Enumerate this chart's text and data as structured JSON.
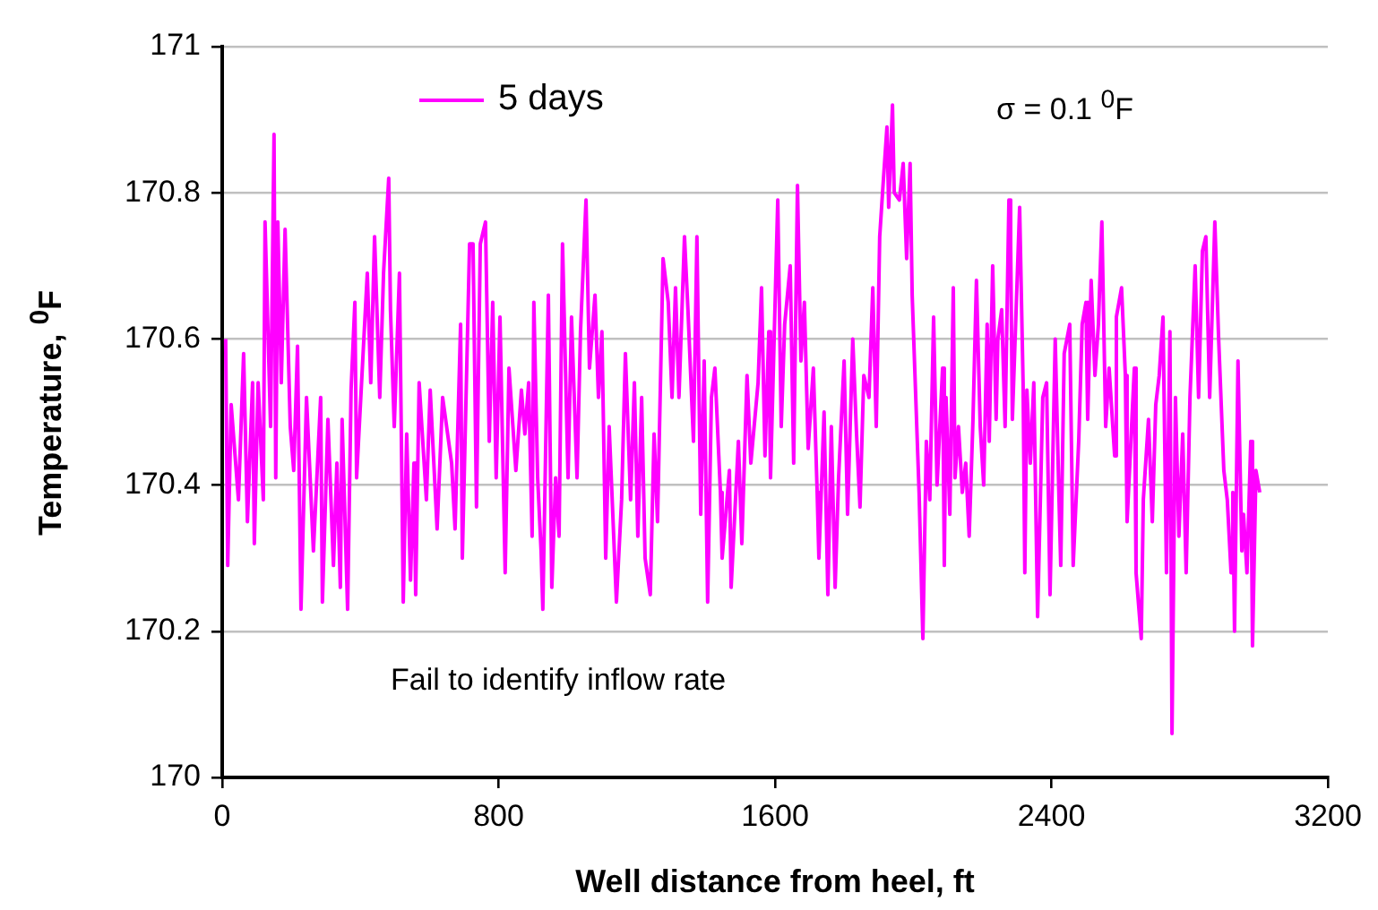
{
  "chart_data": {
    "type": "line",
    "xlabel": "Well distance from heel, ft",
    "ylabel": "Temperature,  $^{0}$F",
    "annotations": [
      "σ = 0.1 $^{0}$F",
      "Fail to identify inflow rate"
    ],
    "xlim": [
      0,
      3200
    ],
    "xticks": [
      0,
      800,
      1600,
      2400,
      3200
    ],
    "ylim": [
      170,
      171
    ],
    "yticks": [
      170,
      170.2,
      170.4,
      170.6,
      170.8,
      171
    ],
    "grid": "y",
    "legend": "top left",
    "marker": "none",
    "line_style": "solid",
    "series": [
      {
        "name": "5 days",
        "color": "#ff00ff",
        "x": [
          10,
          16,
          26,
          47,
          62,
          73,
          88,
          93,
          104,
          119,
          124,
          140,
          150,
          155,
          161,
          171,
          182,
          197,
          207,
          218,
          228,
          244,
          264,
          285,
          290,
          306,
          322,
          332,
          342,
          347,
          363,
          373,
          384,
          389,
          410,
          420,
          430,
          441,
          456,
          467,
          482,
          487,
          498,
          513,
          524,
          534,
          545,
          555,
          560,
          570,
          591,
          602,
          622,
          638,
          664,
          674,
          690,
          695,
          716,
          726,
          736,
          747,
          762,
          773,
          783,
          793,
          804,
          819,
          830,
          850,
          866,
          876,
          887,
          897,
          902,
          913,
          923,
          928,
          944,
          954,
          965,
          975,
          985,
          1001,
          1011,
          1027,
          1037,
          1053,
          1063,
          1079,
          1089,
          1099,
          1110,
          1120,
          1141,
          1156,
          1167,
          1182,
          1193,
          1203,
          1214,
          1224,
          1239,
          1250,
          1260,
          1276,
          1291,
          1302,
          1312,
          1322,
          1338,
          1348,
          1364,
          1374,
          1385,
          1395,
          1405,
          1416,
          1426,
          1442,
          1447,
          1468,
          1473,
          1494,
          1504,
          1519,
          1530,
          1551,
          1561,
          1571,
          1582,
          1587,
          1608,
          1618,
          1628,
          1644,
          1654,
          1665,
          1675,
          1685,
          1696,
          1711,
          1722,
          1727,
          1742,
          1753,
          1763,
          1774,
          1784,
          1800,
          1810,
          1825,
          1836,
          1846,
          1857,
          1872,
          1883,
          1893,
          1903,
          1914,
          1924,
          1929,
          1940,
          1945,
          1960,
          1971,
          1981,
          1991,
          1997,
          2017,
          2028,
          2038,
          2048,
          2059,
          2069,
          2085,
          2090,
          2095,
          2106,
          2116,
          2121,
          2131,
          2142,
          2152,
          2162,
          2173,
          2183,
          2194,
          2204,
          2214,
          2220,
          2230,
          2240,
          2245,
          2256,
          2266,
          2277,
          2282,
          2287,
          2308,
          2318,
          2323,
          2329,
          2339,
          2349,
          2360,
          2375,
          2386,
          2396,
          2411,
          2422,
          2427,
          2437,
          2453,
          2463,
          2479,
          2489,
          2500,
          2505,
          2515,
          2526,
          2536,
          2546,
          2557,
          2567,
          2583,
          2588,
          2603,
          2614,
          2619,
          2640,
          2645,
          2660,
          2666,
          2681,
          2692,
          2702,
          2712,
          2723,
          2733,
          2743,
          2749,
          2759,
          2769,
          2780,
          2790,
          2801,
          2816,
          2826,
          2837,
          2847,
          2858,
          2873,
          2884,
          2889,
          2899,
          2909,
          2920,
          2925,
          2930,
          2940,
          2951,
          2956,
          2966,
          2977,
          2982,
          2992,
          3003
        ],
        "values": [
          170.6,
          170.29,
          170.51,
          170.38,
          170.58,
          170.35,
          170.54,
          170.32,
          170.54,
          170.38,
          170.76,
          170.48,
          170.88,
          170.41,
          170.76,
          170.54,
          170.75,
          170.48,
          170.42,
          170.59,
          170.23,
          170.52,
          170.31,
          170.52,
          170.24,
          170.49,
          170.29,
          170.43,
          170.26,
          170.49,
          170.23,
          170.53,
          170.65,
          170.41,
          170.6,
          170.69,
          170.54,
          170.74,
          170.52,
          170.69,
          170.82,
          170.64,
          170.48,
          170.69,
          170.24,
          170.47,
          170.27,
          170.43,
          170.25,
          170.54,
          170.38,
          170.53,
          170.34,
          170.52,
          170.43,
          170.34,
          170.62,
          170.3,
          170.73,
          170.73,
          170.37,
          170.73,
          170.76,
          170.46,
          170.65,
          170.41,
          170.63,
          170.28,
          170.56,
          170.42,
          170.53,
          170.47,
          170.54,
          170.33,
          170.65,
          170.41,
          170.31,
          170.23,
          170.66,
          170.26,
          170.41,
          170.33,
          170.73,
          170.41,
          170.63,
          170.41,
          170.61,
          170.79,
          170.56,
          170.66,
          170.52,
          170.61,
          170.3,
          170.48,
          170.24,
          170.38,
          170.58,
          170.38,
          170.54,
          170.33,
          170.52,
          170.3,
          170.25,
          170.47,
          170.35,
          170.71,
          170.65,
          170.52,
          170.67,
          170.52,
          170.74,
          170.64,
          170.46,
          170.74,
          170.36,
          170.57,
          170.24,
          170.52,
          170.56,
          170.39,
          170.3,
          170.42,
          170.26,
          170.46,
          170.32,
          170.55,
          170.43,
          170.54,
          170.67,
          170.44,
          170.61,
          170.41,
          170.79,
          170.48,
          170.62,
          170.7,
          170.43,
          170.81,
          170.57,
          170.65,
          170.45,
          170.56,
          170.39,
          170.3,
          170.5,
          170.25,
          170.48,
          170.26,
          170.41,
          170.57,
          170.36,
          170.6,
          170.47,
          170.37,
          170.55,
          170.52,
          170.67,
          170.48,
          170.74,
          170.82,
          170.89,
          170.78,
          170.92,
          170.8,
          170.79,
          170.84,
          170.71,
          170.84,
          170.66,
          170.39,
          170.19,
          170.46,
          170.38,
          170.63,
          170.4,
          170.56,
          170.29,
          170.52,
          170.36,
          170.67,
          170.41,
          170.48,
          170.39,
          170.43,
          170.33,
          170.49,
          170.68,
          170.48,
          170.4,
          170.62,
          170.46,
          170.7,
          170.49,
          170.6,
          170.64,
          170.48,
          170.79,
          170.73,
          170.49,
          170.78,
          170.54,
          170.28,
          170.53,
          170.43,
          170.54,
          170.22,
          170.52,
          170.54,
          170.25,
          170.6,
          170.38,
          170.29,
          170.58,
          170.62,
          170.29,
          170.46,
          170.62,
          170.65,
          170.49,
          170.68,
          170.55,
          170.62,
          170.76,
          170.48,
          170.56,
          170.44,
          170.63,
          170.67,
          170.55,
          170.35,
          170.56,
          170.28,
          170.19,
          170.38,
          170.49,
          170.35,
          170.51,
          170.55,
          170.63,
          170.28,
          170.61,
          170.06,
          170.52,
          170.33,
          170.47,
          170.28,
          170.52,
          170.7,
          170.52,
          170.72,
          170.74,
          170.52,
          170.76,
          170.6,
          170.54,
          170.42,
          170.38,
          170.28,
          170.39,
          170.2,
          170.57,
          170.31,
          170.36,
          170.28,
          170.46,
          170.18,
          170.42,
          170.39
        ]
      }
    ]
  }
}
